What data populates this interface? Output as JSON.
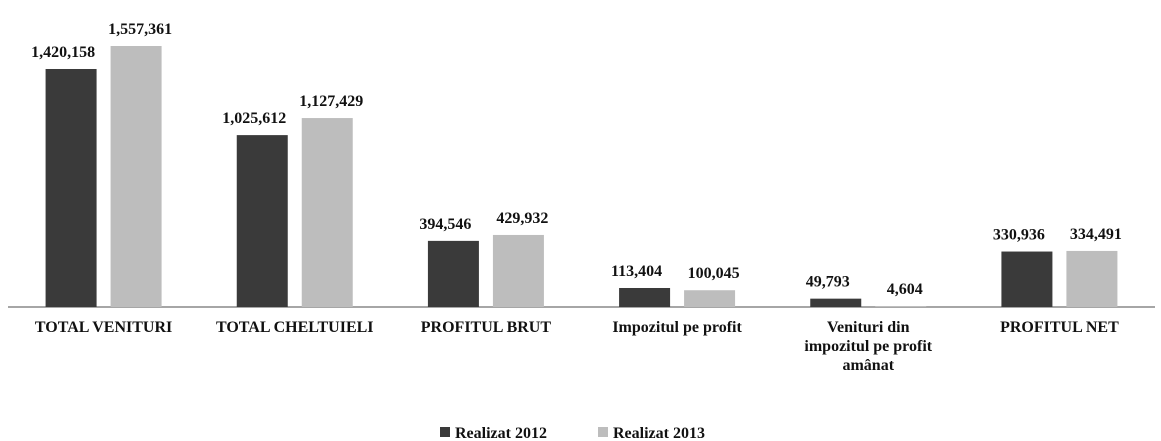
{
  "chart_data": {
    "type": "bar",
    "categories": [
      "TOTAL VENITURI",
      "TOTAL CHELTUIELI",
      "PROFITUL BRUT",
      "Impozitul pe profit",
      "Venituri din impozitul pe profit amânat",
      "PROFITUL NET"
    ],
    "series": [
      {
        "name": "Realizat 2012",
        "color": "#3a3a3a",
        "values": [
          1420158,
          1025612,
          394546,
          113404,
          49793,
          330936
        ],
        "value_labels": [
          "1,420,158",
          "1,025,612",
          "394,546",
          "113,404",
          "49,793",
          "330,936"
        ]
      },
      {
        "name": "Realizat 2013",
        "color": "#bdbdbd",
        "values": [
          1557361,
          1127429,
          429932,
          100045,
          4604,
          334491
        ],
        "value_labels": [
          "1,557,361",
          "1,127,429",
          "429,932",
          "100,045",
          "4,604",
          "334,491"
        ]
      }
    ],
    "legend": "bottom"
  }
}
